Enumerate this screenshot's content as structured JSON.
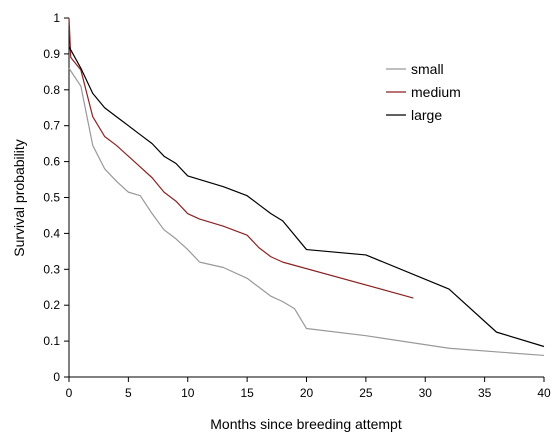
{
  "chart_data": {
    "type": "line",
    "title": "",
    "xlabel": "Months since breeding attempt",
    "ylabel": "Survival probability",
    "xlim": [
      0,
      40
    ],
    "ylim": [
      0,
      1
    ],
    "xticks": [
      0,
      5,
      10,
      15,
      20,
      25,
      30,
      35,
      40
    ],
    "yticks": [
      0,
      0.1,
      0.2,
      0.3,
      0.4,
      0.5,
      0.6,
      0.7,
      0.8,
      0.9,
      1
    ],
    "ytick_labels": [
      "0",
      "0.1",
      "0.2",
      "0.3",
      "0.4",
      "0.5",
      "0.6",
      "0.7",
      "0.8",
      "0.9",
      "1"
    ],
    "grid": false,
    "legend_position": "top-right",
    "series": [
      {
        "name": "small",
        "color": "#999999",
        "points": [
          [
            0,
            0.86
          ],
          [
            1,
            0.81
          ],
          [
            2,
            0.645
          ],
          [
            3,
            0.58
          ],
          [
            4,
            0.545
          ],
          [
            5,
            0.515
          ],
          [
            6,
            0.505
          ],
          [
            7,
            0.455
          ],
          [
            8,
            0.41
          ],
          [
            9,
            0.385
          ],
          [
            10,
            0.355
          ],
          [
            11,
            0.32
          ],
          [
            13,
            0.305
          ],
          [
            15,
            0.275
          ],
          [
            16,
            0.25
          ],
          [
            17,
            0.225
          ],
          [
            18,
            0.21
          ],
          [
            19,
            0.19
          ],
          [
            20,
            0.135
          ],
          [
            25,
            0.115
          ],
          [
            32,
            0.08
          ],
          [
            40,
            0.06
          ]
        ]
      },
      {
        "name": "medium",
        "color": "#8b2323",
        "points": [
          [
            0,
            1.0
          ],
          [
            0.15,
            0.89
          ],
          [
            1,
            0.855
          ],
          [
            2,
            0.725
          ],
          [
            3,
            0.67
          ],
          [
            4,
            0.645
          ],
          [
            5,
            0.615
          ],
          [
            6,
            0.585
          ],
          [
            7,
            0.555
          ],
          [
            8,
            0.515
          ],
          [
            9,
            0.49
          ],
          [
            10,
            0.455
          ],
          [
            11,
            0.44
          ],
          [
            13,
            0.42
          ],
          [
            15,
            0.395
          ],
          [
            16,
            0.36
          ],
          [
            17,
            0.335
          ],
          [
            18,
            0.32
          ],
          [
            29,
            0.22
          ]
        ]
      },
      {
        "name": "large",
        "color": "#000000",
        "points": [
          [
            0,
            0.92
          ],
          [
            1,
            0.86
          ],
          [
            2,
            0.79
          ],
          [
            3,
            0.75
          ],
          [
            4,
            0.725
          ],
          [
            5,
            0.7
          ],
          [
            6,
            0.675
          ],
          [
            7,
            0.65
          ],
          [
            8,
            0.615
          ],
          [
            9,
            0.595
          ],
          [
            10,
            0.56
          ],
          [
            13,
            0.53
          ],
          [
            15,
            0.505
          ],
          [
            16,
            0.48
          ],
          [
            17,
            0.455
          ],
          [
            18,
            0.435
          ],
          [
            20,
            0.355
          ],
          [
            25,
            0.34
          ],
          [
            32,
            0.245
          ],
          [
            36,
            0.125
          ],
          [
            40,
            0.085
          ]
        ]
      }
    ]
  }
}
